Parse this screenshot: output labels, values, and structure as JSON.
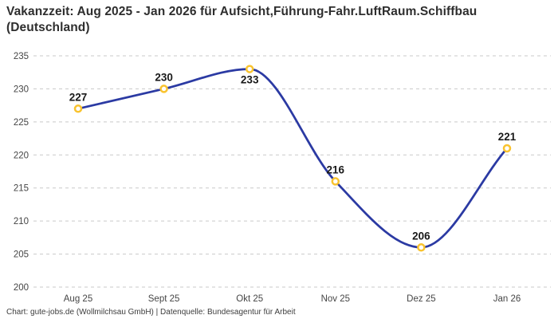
{
  "footer_note": "Chart: gute-jobs.de (Wollmilchsau GmbH) | Datenquelle: Bundesagentur für Arbeit",
  "chart_data": {
    "type": "line",
    "title": "Vakanzzeit: Aug 2025 - Jan 2026 für Aufsicht,Führung-Fahr.LuftRaum.Schiffbau (Deutschland)",
    "categories": [
      "Aug 25",
      "Sept 25",
      "Okt 25",
      "Nov 25",
      "Dez 25",
      "Jan 26"
    ],
    "values": [
      227,
      230,
      233,
      216,
      206,
      221
    ],
    "data_labels": [
      "227",
      "230",
      "233",
      "216",
      "206",
      "221"
    ],
    "xlabel": "",
    "ylabel": "",
    "ylim": [
      200,
      235
    ],
    "yticks": [
      200,
      205,
      210,
      215,
      220,
      225,
      230,
      235
    ],
    "grid": "horizontal-dashed",
    "legend": "none",
    "interpolation": "monotone",
    "colors": {
      "line": "#2b3aa3",
      "marker_fill": "#ffffff",
      "marker_stroke": "#f9c32f",
      "gridline": "#c9c9c9",
      "tick_label": "#454545",
      "data_label": "#191919"
    }
  }
}
